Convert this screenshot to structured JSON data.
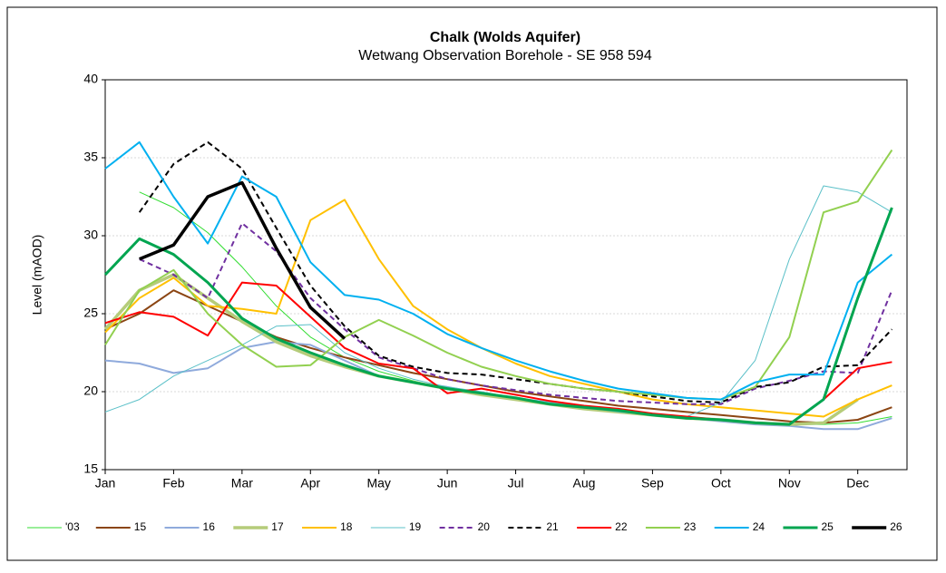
{
  "chart_data": {
    "type": "line",
    "title": "Chalk (Wolds Aquifer)",
    "subtitle": "Wetwang Observation Borehole  - SE 958 594",
    "y_label": "Level (mAOD)",
    "x": [
      0,
      0.5,
      1,
      1.5,
      2,
      2.5,
      3,
      3.5,
      4,
      4.5,
      5,
      5.5,
      6,
      6.5,
      7,
      7.5,
      8,
      8.5,
      9,
      9.5,
      10,
      10.5,
      11,
      11.5
    ],
    "xlim": [
      0,
      11.72
    ],
    "xticks": [
      {
        "value": 0,
        "label": "Jan"
      },
      {
        "value": 1,
        "label": "Feb"
      },
      {
        "value": 2,
        "label": "Mar"
      },
      {
        "value": 3,
        "label": "Apr"
      },
      {
        "value": 4,
        "label": "May"
      },
      {
        "value": 5,
        "label": "Jun"
      },
      {
        "value": 6,
        "label": "Jul"
      },
      {
        "value": 7,
        "label": "Aug"
      },
      {
        "value": 8,
        "label": "Sep"
      },
      {
        "value": 9,
        "label": "Oct"
      },
      {
        "value": 10,
        "label": "Nov"
      },
      {
        "value": 11,
        "label": "Dec"
      }
    ],
    "ylim": [
      15,
      40
    ],
    "yticks": [
      15,
      20,
      25,
      30,
      35,
      40
    ],
    "grid": true,
    "legend": "bottom",
    "series": [
      {
        "name": "'03",
        "color": "#33dd33",
        "width": 1,
        "dash": false,
        "values": [
          null,
          32.8,
          31.8,
          30.2,
          28.0,
          25.5,
          23.5,
          22.2,
          21.3,
          20.7,
          20.2,
          19.8,
          19.5,
          19.3,
          19.0,
          18.8,
          18.6,
          18.4,
          18.2,
          18.0,
          17.9,
          17.9,
          18.0,
          18.4
        ]
      },
      {
        "name": "15",
        "color": "#8b4513",
        "width": 2,
        "dash": false,
        "values": [
          24.0,
          25.0,
          26.5,
          25.5,
          24.5,
          23.5,
          22.8,
          22.2,
          21.7,
          21.2,
          20.8,
          20.4,
          20.0,
          19.7,
          19.4,
          19.1,
          18.9,
          18.7,
          18.5,
          18.3,
          18.1,
          18.0,
          18.2,
          19.0
        ]
      },
      {
        "name": "16",
        "color": "#8faadc",
        "width": 2,
        "dash": false,
        "values": [
          22.0,
          21.8,
          21.2,
          21.5,
          22.8,
          23.2,
          23.0,
          22.0,
          21.0,
          20.6,
          20.3,
          19.9,
          19.6,
          19.3,
          19.0,
          18.8,
          18.5,
          18.3,
          18.1,
          17.9,
          17.8,
          17.6,
          17.6,
          18.3
        ]
      },
      {
        "name": "17",
        "color": "#b5cc7a",
        "width": 3.5,
        "dash": false,
        "values": [
          24.0,
          26.5,
          27.5,
          26.0,
          24.5,
          23.2,
          22.3,
          21.6,
          21.0,
          20.6,
          20.2,
          19.8,
          19.5,
          19.2,
          18.9,
          18.7,
          18.5,
          18.3,
          18.2,
          18.0,
          17.9,
          18.0,
          19.5,
          null
        ]
      },
      {
        "name": "18",
        "color": "#ffc000",
        "width": 2,
        "dash": false,
        "values": [
          23.8,
          26.0,
          27.3,
          25.5,
          25.3,
          25.0,
          31.0,
          32.3,
          28.5,
          25.5,
          24.0,
          22.8,
          21.8,
          21.0,
          20.5,
          20.0,
          19.5,
          19.2,
          19.0,
          18.8,
          18.6,
          18.4,
          19.5,
          20.4
        ]
      },
      {
        "name": "19",
        "color": "#5bc0c8",
        "width": 1,
        "dash": false,
        "values": [
          18.7,
          19.5,
          21.0,
          22.0,
          23.0,
          24.2,
          24.3,
          22.5,
          21.5,
          20.8,
          20.3,
          20.0,
          19.6,
          19.3,
          19.0,
          18.7,
          18.5,
          18.4,
          19.3,
          22.0,
          28.5,
          33.2,
          32.8,
          31.5
        ]
      },
      {
        "name": "20",
        "color": "#7030a0",
        "width": 2,
        "dash": true,
        "values": [
          null,
          28.5,
          27.5,
          26.0,
          30.8,
          29.0,
          26.0,
          24.0,
          22.2,
          21.5,
          20.8,
          20.4,
          20.1,
          19.8,
          19.6,
          19.4,
          19.3,
          19.2,
          19.2,
          20.2,
          20.7,
          21.3,
          21.2,
          26.5
        ]
      },
      {
        "name": "21",
        "color": "#000000",
        "width": 2,
        "dash": true,
        "values": [
          null,
          31.5,
          34.6,
          36.0,
          34.3,
          30.5,
          26.8,
          24.2,
          22.3,
          21.6,
          21.2,
          21.1,
          20.8,
          20.5,
          20.2,
          20.0,
          19.7,
          19.4,
          19.3,
          20.3,
          20.6,
          21.6,
          21.7,
          24.0
        ]
      },
      {
        "name": "22",
        "color": "#ff0000",
        "width": 2,
        "dash": false,
        "values": [
          24.4,
          25.1,
          24.8,
          23.6,
          27.0,
          26.8,
          24.8,
          22.8,
          21.8,
          21.5,
          19.9,
          20.2,
          19.8,
          19.4,
          19.1,
          18.9,
          18.6,
          18.4,
          18.2,
          18.0,
          17.9,
          19.5,
          21.5,
          21.9
        ]
      },
      {
        "name": "23",
        "color": "#92d050",
        "width": 2,
        "dash": false,
        "values": [
          23.0,
          26.5,
          27.8,
          25.0,
          23.0,
          21.6,
          21.7,
          23.5,
          24.6,
          23.6,
          22.5,
          21.6,
          21.0,
          20.5,
          20.2,
          20.0,
          19.8,
          19.6,
          19.5,
          20.3,
          23.5,
          31.5,
          32.2,
          35.5
        ]
      },
      {
        "name": "24",
        "color": "#00b0f0",
        "width": 2,
        "dash": false,
        "values": [
          34.3,
          36.0,
          32.5,
          29.5,
          33.8,
          32.5,
          28.3,
          26.2,
          25.9,
          25.0,
          23.7,
          22.8,
          22.0,
          21.3,
          20.7,
          20.2,
          19.9,
          19.6,
          19.5,
          20.6,
          21.1,
          21.1,
          27.0,
          28.8
        ]
      },
      {
        "name": "25",
        "color": "#00a550",
        "width": 3,
        "dash": false,
        "values": [
          27.5,
          29.8,
          28.8,
          27.0,
          24.7,
          23.4,
          22.5,
          21.7,
          21.0,
          20.6,
          20.2,
          19.9,
          19.6,
          19.2,
          19.0,
          18.8,
          18.5,
          18.3,
          18.2,
          18.0,
          17.9,
          19.5,
          26.0,
          31.8
        ]
      },
      {
        "name": "26",
        "color": "#000000",
        "width": 3.5,
        "dash": false,
        "values": [
          null,
          28.5,
          29.4,
          32.5,
          33.4,
          29.2,
          25.4,
          23.4,
          null,
          null,
          null,
          null,
          null,
          null,
          null,
          null,
          null,
          null,
          null,
          null,
          null,
          null,
          null,
          null
        ]
      }
    ]
  }
}
